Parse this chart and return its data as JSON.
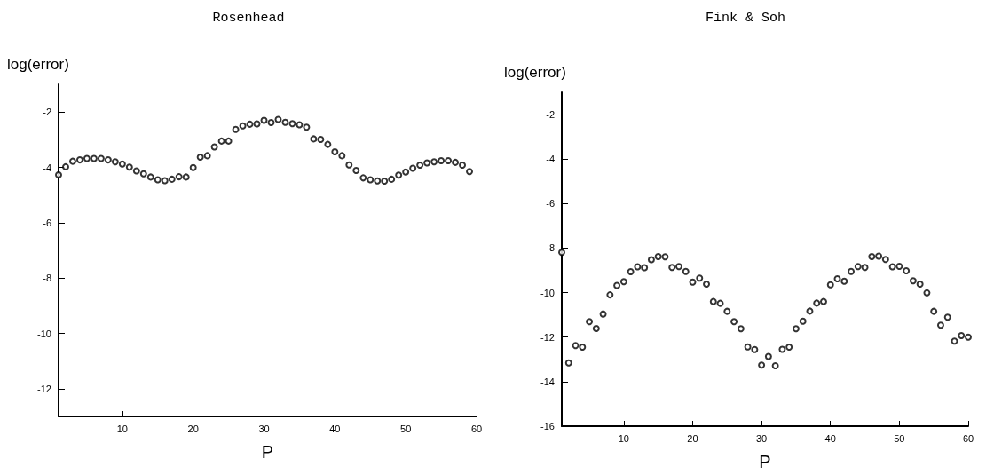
{
  "chart_data": [
    {
      "type": "scatter",
      "title": "Rosenhead",
      "xlabel": "P",
      "ylabel": "log(error)",
      "marker": "circle",
      "xlim": [
        1,
        60
      ],
      "xticks": [
        10,
        20,
        30,
        40,
        50,
        60
      ],
      "ylim": [
        -13,
        -1
      ],
      "yticks": [
        -2,
        -4,
        -6,
        -8,
        -10,
        -12
      ],
      "x": [
        1,
        2,
        3,
        4,
        5,
        6,
        7,
        8,
        9,
        10,
        11,
        12,
        13,
        14,
        15,
        16,
        17,
        18,
        19,
        20,
        21,
        22,
        23,
        24,
        25,
        26,
        27,
        28,
        29,
        30,
        31,
        32,
        33,
        34,
        35,
        36,
        37,
        38,
        39,
        40,
        41,
        42,
        43,
        44,
        45,
        46,
        47,
        48,
        49,
        50,
        51,
        52,
        53,
        54,
        55,
        56,
        57,
        58,
        59
      ],
      "series": [
        {
          "color": "#000000",
          "values": [
            -4.27,
            -3.98,
            -3.78,
            -3.73,
            -3.68,
            -3.68,
            -3.68,
            -3.73,
            -3.8,
            -3.88,
            -3.99,
            -4.13,
            -4.23,
            -4.35,
            -4.45,
            -4.48,
            -4.43,
            -4.34,
            -4.35,
            -4.01,
            -3.63,
            -3.58,
            -3.26,
            -3.05,
            -3.05,
            -2.63,
            -2.5,
            -2.44,
            -2.43,
            -2.3,
            -2.38,
            -2.27,
            -2.37,
            -2.42,
            -2.46,
            -2.55,
            -2.97,
            -2.99,
            -3.17,
            -3.44,
            -3.58,
            -3.91,
            -4.11,
            -4.38,
            -4.45,
            -4.49,
            -4.5,
            -4.43,
            -4.28,
            -4.17,
            -4.03,
            -3.92,
            -3.84,
            -3.8,
            -3.76,
            -3.76,
            -3.82,
            -3.92,
            -4.15
          ]
        }
      ]
    },
    {
      "type": "scatter",
      "title": "Fink & Soh",
      "xlabel": "P",
      "ylabel": "log(error)",
      "marker": "circle",
      "xlim": [
        1,
        60
      ],
      "xticks": [
        10,
        20,
        30,
        40,
        50,
        60
      ],
      "ylim": [
        -16,
        -1
      ],
      "yticks": [
        -2,
        -4,
        -6,
        -8,
        -10,
        -12,
        -14,
        -16
      ],
      "x": [
        1,
        2,
        3,
        4,
        5,
        6,
        7,
        8,
        9,
        10,
        11,
        12,
        13,
        14,
        15,
        16,
        17,
        18,
        19,
        20,
        21,
        22,
        23,
        24,
        25,
        26,
        27,
        28,
        29,
        30,
        31,
        32,
        33,
        34,
        35,
        36,
        37,
        38,
        39,
        40,
        41,
        42,
        43,
        44,
        45,
        46,
        47,
        48,
        49,
        50,
        51,
        52,
        53,
        54,
        55,
        56,
        57,
        58,
        59,
        60
      ],
      "series": [
        {
          "color": "#000000",
          "values": [
            -8.19,
            -13.16,
            -12.38,
            -12.45,
            -11.3,
            -11.61,
            -10.96,
            -10.1,
            -9.68,
            -9.51,
            -9.06,
            -8.84,
            -8.88,
            -8.52,
            -8.38,
            -8.39,
            -8.87,
            -8.83,
            -9.05,
            -9.53,
            -9.35,
            -9.62,
            -10.4,
            -10.48,
            -10.84,
            -11.3,
            -11.62,
            -12.44,
            -12.56,
            -13.26,
            -12.87,
            -13.29,
            -12.55,
            -12.45,
            -11.62,
            -11.28,
            -10.83,
            -10.47,
            -10.4,
            -9.65,
            -9.38,
            -9.49,
            -9.05,
            -8.83,
            -8.87,
            -8.38,
            -8.36,
            -8.51,
            -8.84,
            -8.82,
            -9.02,
            -9.47,
            -9.62,
            -10.01,
            -10.84,
            -11.46,
            -11.1,
            -12.18,
            -11.93,
            -12.0
          ]
        }
      ]
    }
  ]
}
